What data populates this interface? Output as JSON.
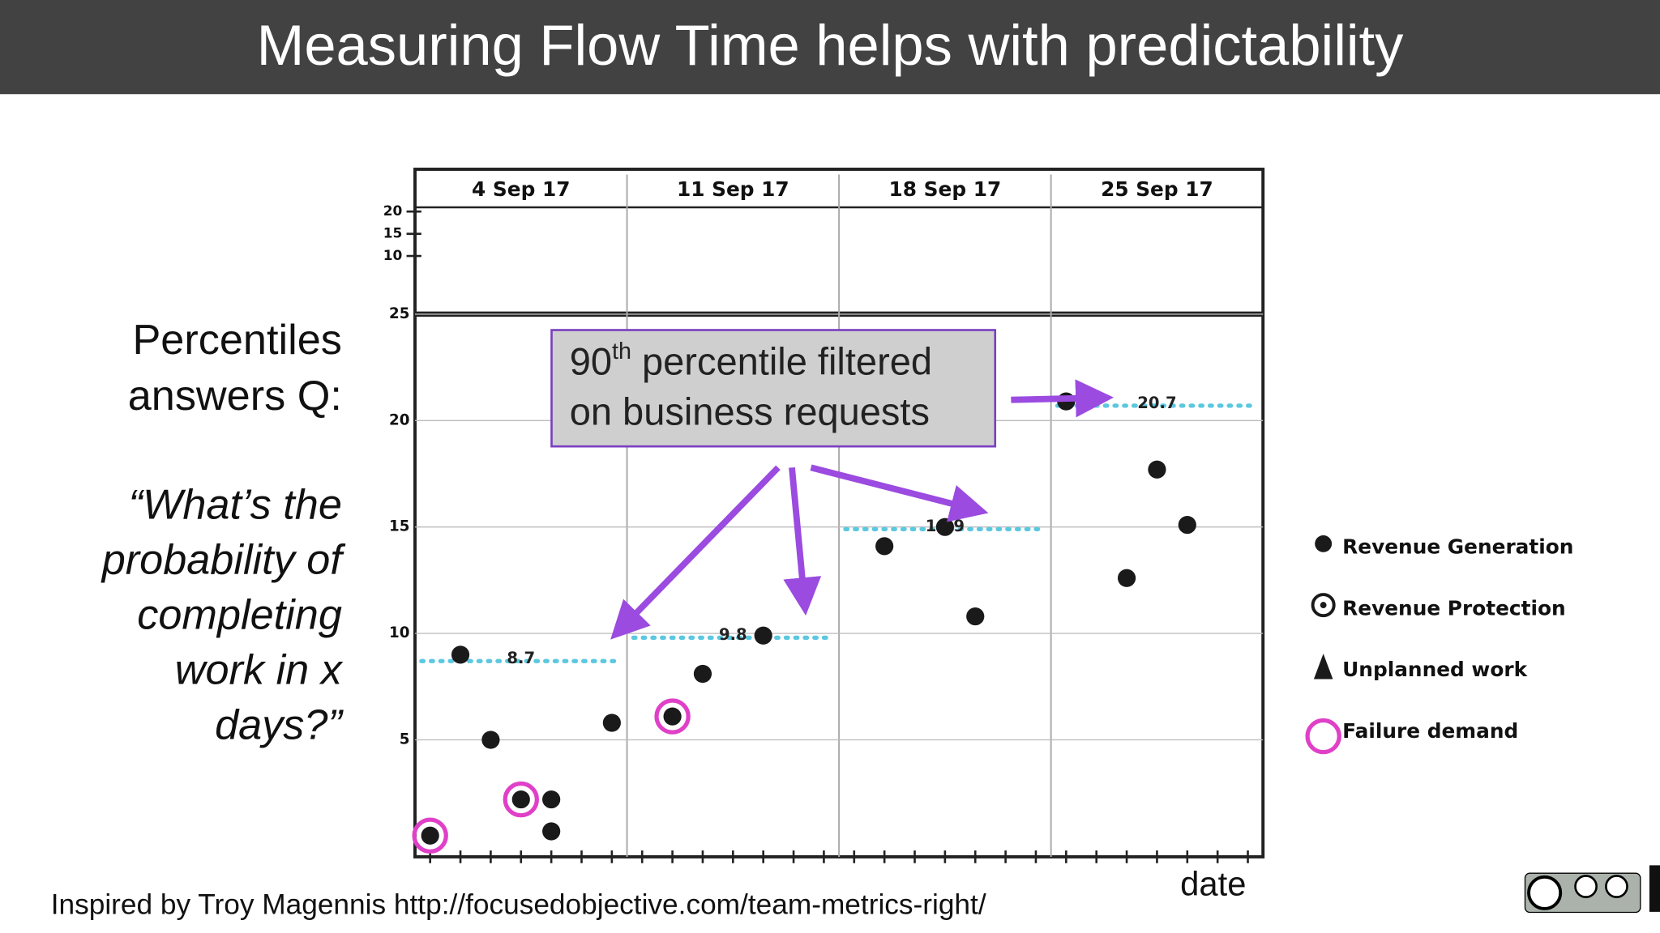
{
  "title": "Measuring Flow Time helps with predictability",
  "side_text": {
    "heading_lines": [
      "Percentiles",
      "answers Q:"
    ],
    "question_lines": [
      "“What’s the",
      "probability of",
      "completing",
      "work in x",
      "days?”"
    ]
  },
  "footer": "Inspired by Troy Magennis http://focusedobjective.com/team-metrics-right/",
  "chart_data": {
    "type": "scatter",
    "x_label": "date",
    "weeks": [
      "4 Sep 17",
      "11 Sep 17",
      "18 Sep 17",
      "25 Sep 17"
    ],
    "xlim": [
      "2017-09-04",
      "2017-10-02"
    ],
    "ylim": [
      0,
      25
    ],
    "yticks": [
      5,
      10,
      15,
      20,
      25
    ],
    "histogram_ticks": [
      10,
      15,
      20
    ],
    "grid": true,
    "callout": {
      "ordinal": "90",
      "ordinal_suffix": "th",
      "line1": " percentile filtered",
      "line2": "on business requests"
    },
    "percentiles": {
      "values": [
        8.7,
        9.8,
        14.9,
        20.7
      ],
      "color": "#5bc8e0"
    },
    "series": [
      {
        "name": "Revenue Generation",
        "color": "#1a1a1a",
        "x": [
          "2017-09-04",
          "2017-09-05",
          "2017-09-06",
          "2017-09-07",
          "2017-09-08",
          "2017-09-08",
          "2017-09-10",
          "2017-09-12",
          "2017-09-13",
          "2017-09-15",
          "2017-09-19",
          "2017-09-21",
          "2017-09-22",
          "2017-09-25",
          "2017-09-27",
          "2017-09-28",
          "2017-09-29"
        ],
        "values": [
          0.5,
          9.0,
          5.0,
          2.2,
          2.2,
          0.7,
          5.8,
          6.1,
          8.1,
          9.9,
          14.1,
          15.0,
          10.8,
          20.9,
          12.6,
          17.7,
          15.1
        ]
      },
      {
        "name": "Revenue Protection",
        "color": "#1a1a1a",
        "x": [],
        "values": []
      },
      {
        "name": "Unplanned work",
        "color": "#1a1a1a",
        "x": [],
        "values": []
      },
      {
        "name": "Failure demand",
        "color": "#e040c8",
        "x": [
          "2017-09-04",
          "2017-09-07",
          "2017-09-12"
        ],
        "values": [
          0.5,
          2.2,
          6.1
        ]
      }
    ]
  }
}
